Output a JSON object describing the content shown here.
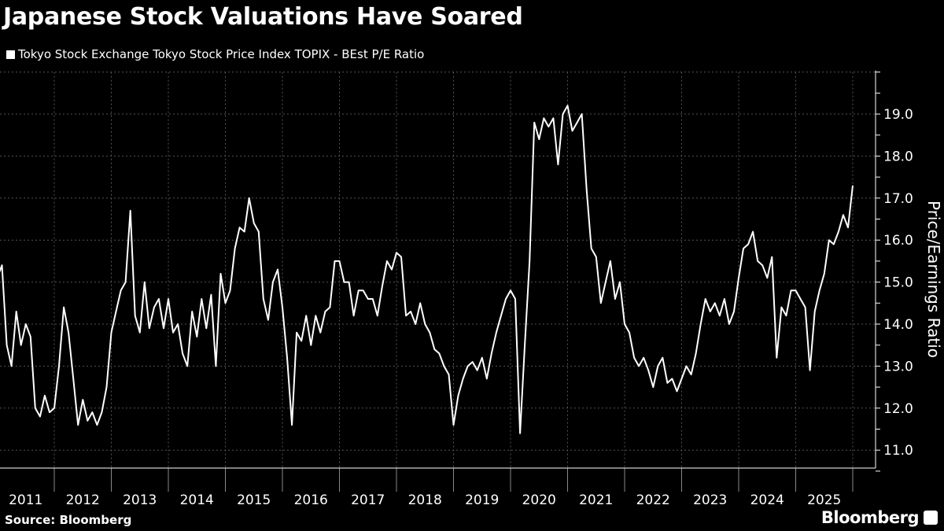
{
  "chart_data": {
    "type": "line",
    "title": "Japanese Stock Valuations Have Soared",
    "legend": [
      "Tokyo Stock Exchange Tokyo Stock Price Index TOPIX - BEst P/E Ratio"
    ],
    "legend_placement": "top-left",
    "ylabel": "Price/Earnings Ratio",
    "xlabel": "",
    "ylim": [
      10.6,
      20.0
    ],
    "yticks": [
      "11.0",
      "12.0",
      "13.0",
      "14.0",
      "15.0",
      "16.0",
      "17.0",
      "18.0",
      "19.0"
    ],
    "xticks": [
      "2011",
      "2012",
      "2013",
      "2014",
      "2015",
      "2016",
      "2017",
      "2018",
      "2019",
      "2020",
      "2021",
      "2022",
      "2023",
      "2024",
      "2025"
    ],
    "grid": true,
    "y_axis_side": "right",
    "colors": {
      "background": "#000000",
      "line": "#ffffff",
      "grid": "#555555"
    },
    "series": [
      {
        "name": "Tokyo Stock Exchange Tokyo Stock Price Index TOPIX - BEst P/E Ratio",
        "values": [
          15.1,
          15.4,
          13.5,
          13.0,
          14.3,
          13.5,
          14.0,
          13.7,
          12.0,
          11.8,
          12.3,
          11.9,
          12.0,
          13.0,
          14.4,
          13.8,
          12.7,
          11.6,
          12.2,
          11.7,
          11.9,
          11.6,
          11.9,
          12.5,
          13.8,
          14.3,
          14.8,
          15.0,
          16.7,
          14.2,
          13.8,
          15.0,
          13.9,
          14.4,
          14.6,
          13.9,
          14.6,
          13.8,
          14.0,
          13.3,
          13.0,
          14.3,
          13.7,
          14.6,
          13.9,
          14.7,
          13.0,
          15.2,
          14.5,
          14.8,
          15.8,
          16.3,
          16.2,
          17.0,
          16.4,
          16.2,
          14.6,
          14.1,
          15.0,
          15.3,
          14.4,
          13.2,
          11.6,
          13.8,
          13.6,
          14.2,
          13.5,
          14.2,
          13.8,
          14.3,
          14.4,
          15.5,
          15.5,
          15.0,
          15.0,
          14.2,
          14.8,
          14.8,
          14.6,
          14.6,
          14.2,
          14.9,
          15.5,
          15.3,
          15.7,
          15.6,
          14.2,
          14.3,
          14.0,
          14.5,
          14.0,
          13.8,
          13.4,
          13.3,
          13.0,
          12.8,
          11.6,
          12.3,
          12.7,
          13.0,
          13.1,
          12.9,
          13.2,
          12.7,
          13.3,
          13.8,
          14.2,
          14.6,
          14.8,
          14.6,
          11.4,
          13.5,
          15.5,
          18.8,
          18.4,
          18.9,
          18.7,
          18.9,
          17.8,
          19.0,
          19.2,
          18.6,
          18.8,
          19.0,
          17.2,
          15.8,
          15.6,
          14.5,
          15.0,
          15.5,
          14.6,
          15.0,
          14.0,
          13.8,
          13.2,
          13.0,
          13.2,
          12.9,
          12.5,
          13.0,
          13.2,
          12.6,
          12.7,
          12.4,
          12.7,
          13.0,
          12.8,
          13.3,
          14.0,
          14.6,
          14.3,
          14.5,
          14.2,
          14.6,
          14.0,
          14.3,
          15.1,
          15.8,
          15.9,
          16.2,
          15.5,
          15.4,
          15.1,
          15.6,
          13.2,
          14.4,
          14.2,
          14.8,
          14.8,
          14.6,
          14.4,
          12.9,
          14.3,
          14.8,
          15.2,
          16.0,
          15.9,
          16.2,
          16.6,
          16.3,
          17.3
        ],
        "x_start": "2011-01",
        "x_frequency": "monthly",
        "x_end": "2026-01"
      }
    ]
  },
  "source": "Source: Bloomberg",
  "brand": "Bloomberg"
}
